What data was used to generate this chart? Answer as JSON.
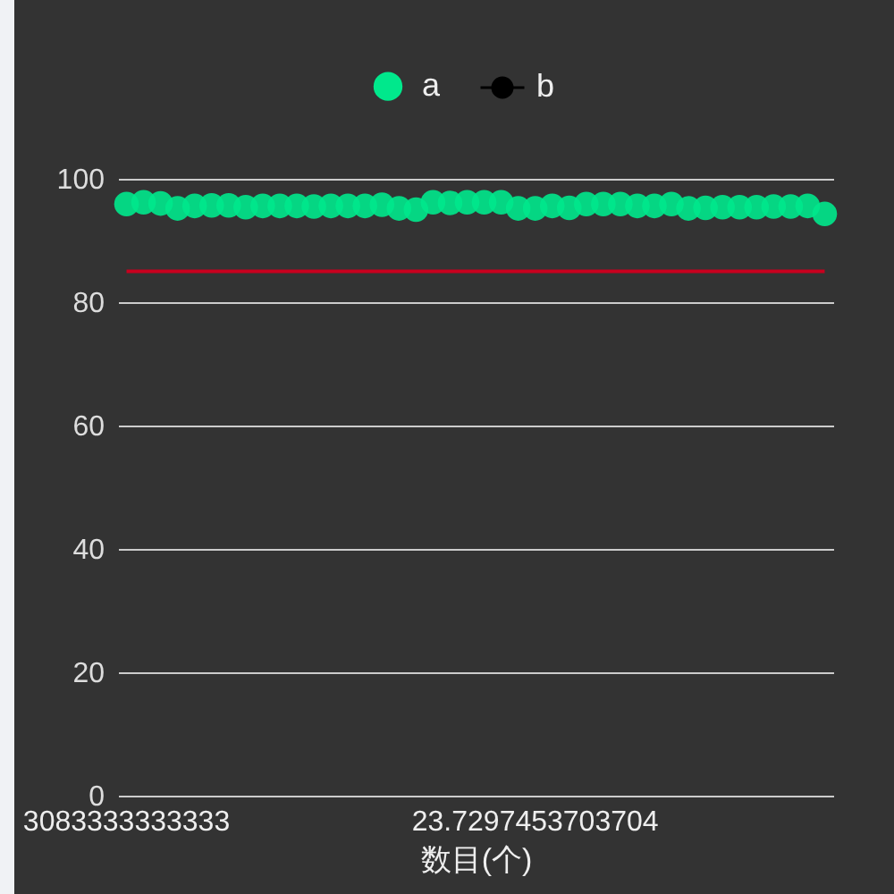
{
  "chart_data": {
    "type": "scatter",
    "xlabel": "数目(个)",
    "categories": [
      "3083333333333",
      null,
      null,
      null,
      null,
      null,
      null,
      null,
      null,
      null,
      null,
      null,
      null,
      null,
      null,
      null,
      null,
      null,
      null,
      null,
      null,
      null,
      null,
      null,
      "23.7297453703704",
      null,
      null,
      null,
      null,
      null,
      null,
      null,
      null,
      null,
      null,
      null,
      null,
      null,
      null,
      null,
      null,
      null
    ],
    "series": [
      {
        "name": "a",
        "type": "scatter",
        "color": "#00e88c",
        "values": [
          95.9,
          96.2,
          96.0,
          95.2,
          95.6,
          95.7,
          95.7,
          95.4,
          95.6,
          95.6,
          95.6,
          95.5,
          95.6,
          95.6,
          95.6,
          95.8,
          95.2,
          95.0,
          96.2,
          96.1,
          96.2,
          96.2,
          96.2,
          95.2,
          95.2,
          95.6,
          95.3,
          95.9,
          95.9,
          95.9,
          95.6,
          95.6,
          95.9,
          95.2,
          95.3,
          95.4,
          95.4,
          95.4,
          95.5,
          95.5,
          95.6,
          94.3
        ]
      },
      {
        "name": "b",
        "type": "line",
        "color": "#000000",
        "values": [
          null,
          null,
          null,
          null,
          null,
          null,
          null,
          null,
          null,
          null,
          null,
          null,
          null,
          null,
          null,
          null,
          null,
          null,
          null,
          null,
          null,
          null,
          null,
          null,
          null,
          null,
          null,
          null,
          null,
          null,
          null,
          null,
          null,
          null,
          null,
          null,
          null,
          null,
          null,
          null,
          null,
          null
        ]
      }
    ],
    "ylim": [
      0,
      100
    ],
    "yticks": [
      0,
      20,
      40,
      60,
      80,
      100
    ],
    "ref_lines": [
      {
        "axis": "y",
        "value": 85,
        "color": "#c8001e"
      }
    ],
    "marker": "circle",
    "grid": "y",
    "legend": "top"
  }
}
